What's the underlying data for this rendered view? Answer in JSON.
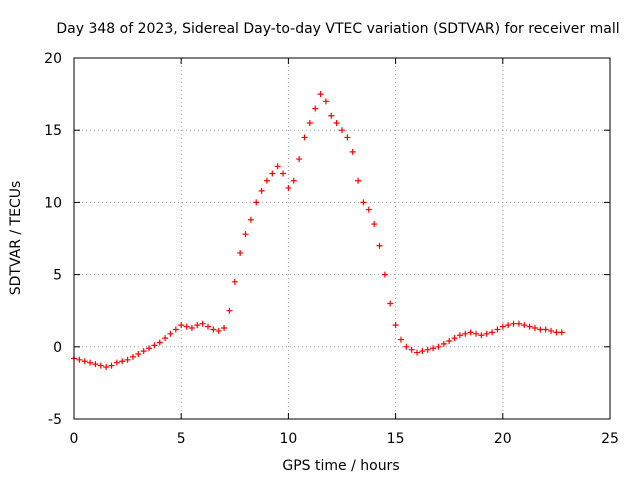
{
  "chart_data": {
    "type": "scatter",
    "title": "Day 348 of 2023, Sidereal Day-to-day VTEC variation (SDTVAR) for receiver mall",
    "xlabel": "GPS time / hours",
    "ylabel": "SDTVAR / TECUs",
    "xlim": [
      0,
      25
    ],
    "ylim": [
      -5,
      20
    ],
    "xticks": [
      0,
      5,
      10,
      15,
      20,
      25
    ],
    "yticks": [
      -5,
      0,
      5,
      10,
      15,
      20
    ],
    "xtick_labels": [
      "0",
      "5",
      "10",
      "15",
      "20",
      "25"
    ],
    "ytick_labels": [
      "-5",
      "0",
      "5",
      "10",
      "15",
      "20"
    ],
    "grid": true,
    "marker": "plus",
    "color": "#ff0000",
    "series": [
      {
        "name": "SDTVAR",
        "x": [
          0.0,
          0.25,
          0.5,
          0.75,
          1.0,
          1.25,
          1.5,
          1.75,
          2.0,
          2.25,
          2.5,
          2.75,
          3.0,
          3.25,
          3.5,
          3.75,
          4.0,
          4.25,
          4.5,
          4.75,
          5.0,
          5.25,
          5.5,
          5.75,
          6.0,
          6.25,
          6.5,
          6.75,
          7.0,
          7.25,
          7.5,
          7.75,
          8.0,
          8.25,
          8.5,
          8.75,
          9.0,
          9.25,
          9.5,
          9.75,
          10.0,
          10.25,
          10.5,
          10.75,
          11.0,
          11.25,
          11.5,
          11.75,
          12.0,
          12.25,
          12.5,
          12.75,
          13.0,
          13.25,
          13.5,
          13.75,
          14.0,
          14.25,
          14.5,
          14.75,
          15.0,
          15.25,
          15.5,
          15.75,
          16.0,
          16.25,
          16.5,
          16.75,
          17.0,
          17.25,
          17.5,
          17.75,
          18.0,
          18.25,
          18.5,
          18.75,
          19.0,
          19.25,
          19.5,
          19.75,
          20.0,
          20.25,
          20.5,
          20.75,
          21.0,
          21.25,
          21.5,
          21.75,
          22.0,
          22.25,
          22.5,
          22.75
        ],
        "y": [
          -0.8,
          -0.9,
          -1.0,
          -1.1,
          -1.2,
          -1.3,
          -1.4,
          -1.3,
          -1.1,
          -1.0,
          -0.9,
          -0.7,
          -0.5,
          -0.3,
          -0.1,
          0.1,
          0.3,
          0.6,
          0.9,
          1.2,
          1.5,
          1.4,
          1.3,
          1.5,
          1.6,
          1.4,
          1.2,
          1.1,
          1.3,
          2.5,
          4.5,
          6.5,
          7.8,
          8.8,
          10.0,
          10.8,
          11.5,
          12.0,
          12.5,
          12.0,
          11.0,
          11.5,
          13.0,
          14.5,
          15.5,
          16.5,
          17.5,
          17.0,
          16.0,
          15.5,
          15.0,
          14.5,
          13.5,
          11.5,
          10.0,
          9.5,
          8.5,
          7.0,
          5.0,
          3.0,
          1.5,
          0.5,
          0.0,
          -0.2,
          -0.4,
          -0.3,
          -0.2,
          -0.1,
          0.0,
          0.2,
          0.4,
          0.6,
          0.8,
          0.9,
          1.0,
          0.9,
          0.8,
          0.9,
          1.0,
          1.2,
          1.4,
          1.5,
          1.6,
          1.6,
          1.5,
          1.4,
          1.3,
          1.2,
          1.2,
          1.1,
          1.0,
          1.0
        ]
      }
    ]
  }
}
